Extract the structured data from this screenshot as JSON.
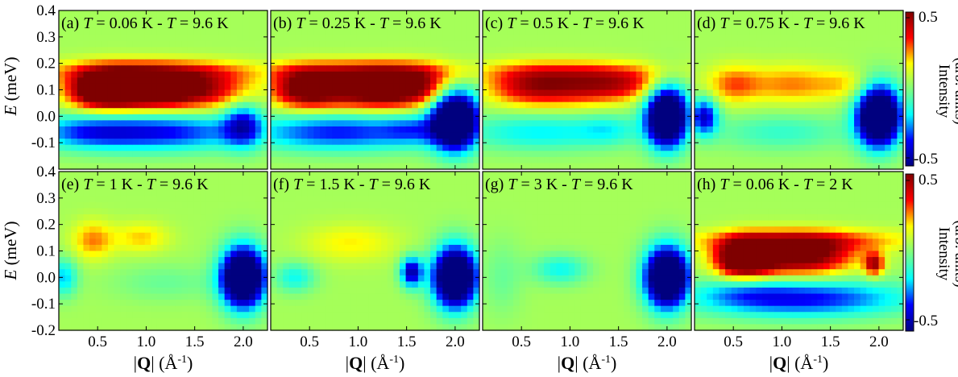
{
  "figure": {
    "xlabel_prefix": "|",
    "xlabel_bold": "Q",
    "xlabel_suffix": "| (Å",
    "xlabel_exp": "-1",
    "xlabel_close": ")",
    "ylabel_italic": "E",
    "ylabel_rest": " (meV)",
    "colorbar_label_line1": "Intensity",
    "colorbar_label_line2": "(arb. units)",
    "colorbar_ticks": [
      "0.5",
      "-0.5"
    ],
    "colormap": [
      "#00007f",
      "#0000ff",
      "#00ffff",
      "#7fff7f",
      "#ffff00",
      "#ff0000",
      "#7f0000"
    ]
  },
  "chart_data": [
    {
      "type": "heatmap",
      "label": "(a)",
      "t1": "0.06 K",
      "t2": "9.6 K",
      "x_ticks": [
        0.5,
        1.0,
        1.5,
        2.0
      ],
      "y_ticks": [
        -0.1,
        0.0,
        0.1,
        0.2,
        0.3,
        0.4
      ],
      "xlim": [
        0.1,
        2.25
      ],
      "ylim": [
        -0.2,
        0.4
      ],
      "zlim": [
        -0.5,
        0.5
      ],
      "features": [
        [
          0.55,
          0.1,
          0.25,
          0.05,
          0.65
        ],
        [
          1.0,
          0.1,
          0.3,
          0.05,
          0.45
        ],
        [
          1.5,
          0.1,
          0.4,
          0.05,
          0.4
        ],
        [
          1.05,
          0.17,
          0.8,
          0.03,
          0.25
        ],
        [
          1.0,
          -0.06,
          0.8,
          0.05,
          -0.42
        ],
        [
          2.0,
          -0.03,
          0.14,
          0.06,
          -0.35
        ],
        [
          0.4,
          -0.06,
          0.3,
          0.04,
          -0.1
        ]
      ]
    },
    {
      "type": "heatmap",
      "label": "(b)",
      "t1": "0.25 K",
      "t2": "9.6 K",
      "x_ticks": [
        0.5,
        1.0,
        1.5,
        2.0
      ],
      "y_ticks": [],
      "xlim": [
        0.1,
        2.25
      ],
      "ylim": [
        -0.2,
        0.4
      ],
      "zlim": [
        -0.5,
        0.5
      ],
      "features": [
        [
          0.45,
          0.1,
          0.25,
          0.05,
          0.48
        ],
        [
          1.1,
          0.1,
          0.35,
          0.05,
          0.5
        ],
        [
          1.6,
          0.11,
          0.3,
          0.05,
          0.35
        ],
        [
          1.0,
          0.17,
          0.8,
          0.03,
          0.25
        ],
        [
          0.8,
          -0.06,
          0.7,
          0.05,
          -0.38
        ],
        [
          2.0,
          -0.01,
          0.17,
          0.08,
          -0.9
        ],
        [
          1.55,
          -0.05,
          0.2,
          0.04,
          -0.15
        ]
      ]
    },
    {
      "type": "heatmap",
      "label": "(c)",
      "t1": "0.5 K",
      "t2": "9.6 K",
      "x_ticks": [
        0.5,
        1.0,
        1.5,
        2.0
      ],
      "y_ticks": [],
      "xlim": [
        0.1,
        2.25
      ],
      "ylim": [
        -0.2,
        0.4
      ],
      "zlim": [
        -0.5,
        0.5
      ],
      "features": [
        [
          0.55,
          0.11,
          0.3,
          0.05,
          0.3
        ],
        [
          1.1,
          0.11,
          0.35,
          0.05,
          0.3
        ],
        [
          1.6,
          0.12,
          0.3,
          0.04,
          0.22
        ],
        [
          1.0,
          0.17,
          0.8,
          0.03,
          0.15
        ],
        [
          0.7,
          -0.06,
          0.6,
          0.05,
          -0.22
        ],
        [
          2.0,
          0.0,
          0.15,
          0.08,
          -0.9
        ],
        [
          1.4,
          -0.05,
          0.2,
          0.04,
          -0.12
        ]
      ]
    },
    {
      "type": "heatmap",
      "label": "(d)",
      "t1": "0.75 K",
      "t2": "9.6 K",
      "x_ticks": [
        0.5,
        1.0,
        1.5,
        2.0
      ],
      "y_ticks": [],
      "xlim": [
        0.1,
        2.25
      ],
      "ylim": [
        -0.2,
        0.4
      ],
      "zlim": [
        -0.5,
        0.5
      ],
      "features": [
        [
          0.5,
          0.12,
          0.2,
          0.05,
          0.22
        ],
        [
          1.1,
          0.12,
          0.3,
          0.05,
          0.2
        ],
        [
          1.65,
          0.12,
          0.2,
          0.04,
          0.12
        ],
        [
          2.0,
          0.0,
          0.16,
          0.08,
          -0.9
        ],
        [
          0.2,
          0.0,
          0.1,
          0.05,
          -0.45
        ],
        [
          1.0,
          -0.06,
          0.5,
          0.05,
          -0.15
        ]
      ]
    },
    {
      "type": "heatmap",
      "label": "(e)",
      "t1": "1 K",
      "t2": "9.6 K",
      "x_ticks": [
        0.5,
        1.0,
        1.5,
        2.0
      ],
      "y_ticks": [
        -0.2,
        -0.1,
        0.0,
        0.1,
        0.2,
        0.3,
        0.4
      ],
      "xlim": [
        0.1,
        2.25
      ],
      "ylim": [
        -0.2,
        0.4
      ],
      "zlim": [
        -0.5,
        0.5
      ],
      "features": [
        [
          0.45,
          0.14,
          0.15,
          0.05,
          0.2
        ],
        [
          0.95,
          0.15,
          0.2,
          0.04,
          0.15
        ],
        [
          2.0,
          0.0,
          0.16,
          0.08,
          -0.9
        ],
        [
          0.15,
          0.0,
          0.1,
          0.05,
          -0.25
        ],
        [
          1.2,
          -0.02,
          0.4,
          0.05,
          -0.08
        ]
      ]
    },
    {
      "type": "heatmap",
      "label": "(f)",
      "t1": "1.5 K",
      "t2": "9.6 K",
      "x_ticks": [
        0.5,
        1.0,
        1.5,
        2.0
      ],
      "y_ticks": [],
      "xlim": [
        0.1,
        2.25
      ],
      "ylim": [
        -0.2,
        0.4
      ],
      "zlim": [
        -0.5,
        0.5
      ],
      "features": [
        [
          0.8,
          0.13,
          0.3,
          0.05,
          0.08
        ],
        [
          1.1,
          0.13,
          0.3,
          0.05,
          0.06
        ],
        [
          2.0,
          0.0,
          0.16,
          0.08,
          -0.9
        ],
        [
          1.55,
          0.02,
          0.08,
          0.04,
          -0.5
        ],
        [
          0.35,
          0.0,
          0.15,
          0.04,
          -0.2
        ]
      ]
    },
    {
      "type": "heatmap",
      "label": "(g)",
      "t1": "3 K",
      "t2": "9.6 K",
      "x_ticks": [
        0.5,
        1.0,
        1.5,
        2.0
      ],
      "y_ticks": [],
      "xlim": [
        0.1,
        2.25
      ],
      "ylim": [
        -0.2,
        0.4
      ],
      "zlim": [
        -0.5,
        0.5
      ],
      "features": [
        [
          2.0,
          0.0,
          0.16,
          0.08,
          -0.9
        ],
        [
          0.9,
          0.03,
          0.2,
          0.04,
          -0.2
        ],
        [
          0.3,
          0.0,
          0.15,
          0.1,
          -0.08
        ]
      ]
    },
    {
      "type": "heatmap",
      "label": "(h)",
      "t1": "0.06 K",
      "t2": "2 K",
      "x_ticks": [
        0.5,
        1.0,
        1.5,
        2.0
      ],
      "y_ticks": [],
      "xlim": [
        0.1,
        2.25
      ],
      "ylim": [
        -0.2,
        0.4
      ],
      "zlim": [
        -0.5,
        0.5
      ],
      "features": [
        [
          0.6,
          0.07,
          0.2,
          0.05,
          0.65
        ],
        [
          1.0,
          0.08,
          0.3,
          0.05,
          0.35
        ],
        [
          1.4,
          0.08,
          0.3,
          0.05,
          0.3
        ],
        [
          1.95,
          0.05,
          0.07,
          0.03,
          0.4
        ],
        [
          1.2,
          0.14,
          0.8,
          0.03,
          0.25
        ],
        [
          1.2,
          -0.08,
          0.8,
          0.05,
          -0.4
        ],
        [
          0.6,
          -0.05,
          0.3,
          0.04,
          -0.1
        ]
      ]
    }
  ]
}
